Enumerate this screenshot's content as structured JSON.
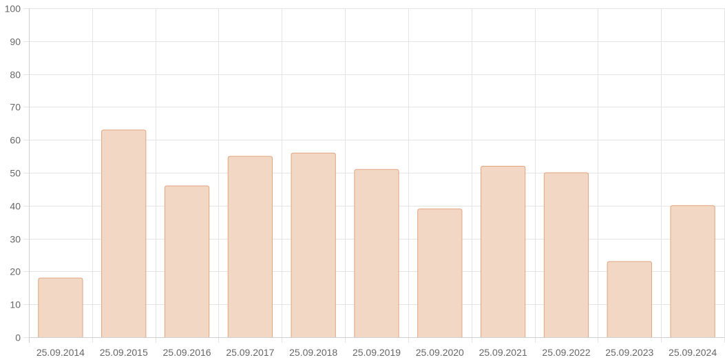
{
  "chart_data": {
    "type": "bar",
    "title": "",
    "xlabel": "",
    "ylabel": "",
    "categories": [
      "25.09.2014",
      "25.09.2015",
      "25.09.2016",
      "25.09.2017",
      "25.09.2018",
      "25.09.2019",
      "25.09.2020",
      "25.09.2021",
      "25.09.2022",
      "25.09.2023",
      "25.09.2024"
    ],
    "values": [
      18,
      63,
      46,
      55,
      56,
      51,
      39,
      52,
      50,
      23,
      40
    ],
    "ylim": [
      0,
      100
    ],
    "yticks": [
      0,
      10,
      20,
      30,
      40,
      50,
      60,
      70,
      80,
      90,
      100
    ],
    "grid": true,
    "legend": "none",
    "colors": {
      "bar_fill": "#f2d7c5",
      "bar_stroke": "#e0a47e",
      "grid": "#e3e3e3",
      "tick_text": "#666666"
    }
  }
}
